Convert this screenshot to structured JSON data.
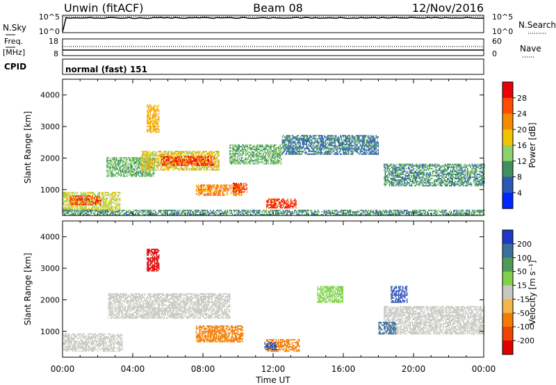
{
  "header": {
    "radar": "Unwin (fitACF)",
    "beam": "Beam 08",
    "date": "12/Nov/2016"
  },
  "nsky_panel": {
    "left_label": "N.Sky",
    "left_ticks": [
      "10^5",
      "10^0"
    ],
    "right_ticks": [
      "10^5",
      "10^0"
    ],
    "right_label": "N.Search"
  },
  "freq_panel": {
    "left_label_line1": "Freq.",
    "left_label_line2": "[MHz]",
    "left_ticks": [
      "18",
      "8"
    ],
    "right_ticks": [
      "60",
      "0"
    ],
    "right_label": "Nave"
  },
  "cpid_panel": {
    "label": "CPID",
    "mode": "normal (fast) 151"
  },
  "power_panel": {
    "ylabel": "Slant Range [km]",
    "colorbar_label": "Power [dB]",
    "colorbar_ticks": [
      "28",
      "24",
      "20",
      "16",
      "12",
      "8",
      "4"
    ],
    "colorbar_colors": [
      "#e8000b",
      "#ff4a00",
      "#f58a00",
      "#f0c400",
      "#8dd36a",
      "#3f8f60",
      "#2c59b6",
      "#0027ff"
    ]
  },
  "velocity_panel": {
    "ylabel": "Slant Range [km]",
    "colorbar_label": "Velocity [m s⁻¹]",
    "colorbar_ticks": [
      "200",
      "100",
      "50",
      "15",
      "-15",
      "-50",
      "-100",
      "-200"
    ],
    "colorbar_colors": [
      "#2038c8",
      "#3a6f9e",
      "#4f9a57",
      "#7fd14a",
      "#c8c8c0",
      "#f4b54a",
      "#f47c00",
      "#f04200",
      "#e00000"
    ]
  },
  "xaxis": {
    "label": "Time UT",
    "ticks": [
      "00:00",
      "04:00",
      "08:00",
      "12:00",
      "16:00",
      "20:00",
      "00:00"
    ]
  },
  "chart_data": {
    "type": "heatmap",
    "x_range_hours": [
      0,
      24
    ],
    "y_range_km": [
      180,
      4500
    ],
    "y_ticks": [
      1000,
      2000,
      3000,
      4000
    ],
    "x_ticks": [
      "00:00",
      "04:00",
      "08:00",
      "12:00",
      "16:00",
      "20:00",
      "00:00"
    ],
    "power_regions": [
      {
        "t0": 0.0,
        "t1": 3.3,
        "r0": 300,
        "r1": 900,
        "value": 16
      },
      {
        "t0": 0.4,
        "t1": 2.2,
        "r0": 500,
        "r1": 800,
        "value": 26
      },
      {
        "t0": 2.5,
        "t1": 5.2,
        "r0": 1400,
        "r1": 2000,
        "value": 12
      },
      {
        "t0": 4.5,
        "t1": 8.9,
        "r0": 1600,
        "r1": 2200,
        "value": 18
      },
      {
        "t0": 5.6,
        "t1": 8.6,
        "r0": 1750,
        "r1": 2050,
        "value": 27
      },
      {
        "t0": 4.8,
        "t1": 5.5,
        "r0": 2800,
        "r1": 3700,
        "value": 20
      },
      {
        "t0": 7.6,
        "t1": 10.2,
        "r0": 800,
        "r1": 1150,
        "value": 22
      },
      {
        "t0": 9.7,
        "t1": 10.5,
        "r0": 900,
        "r1": 1200,
        "value": 27
      },
      {
        "t0": 9.5,
        "t1": 12.5,
        "r0": 1800,
        "r1": 2400,
        "value": 12
      },
      {
        "t0": 11.6,
        "t1": 13.3,
        "r0": 400,
        "r1": 700,
        "value": 27
      },
      {
        "t0": 12.5,
        "t1": 18.0,
        "r0": 2100,
        "r1": 2700,
        "value": 8
      },
      {
        "t0": 18.3,
        "t1": 24.0,
        "r0": 1100,
        "r1": 1800,
        "value": 10
      },
      {
        "t0": 0.0,
        "t1": 24.0,
        "r0": 180,
        "r1": 320,
        "value": 10
      }
    ],
    "velocity_regions": [
      {
        "t0": 0.0,
        "t1": 3.4,
        "r0": 350,
        "r1": 900,
        "value": -5
      },
      {
        "t0": 2.6,
        "t1": 9.5,
        "r0": 1400,
        "r1": 2200,
        "value": 0
      },
      {
        "t0": 4.8,
        "t1": 5.5,
        "r0": 2900,
        "r1": 3600,
        "value": -220
      },
      {
        "t0": 7.6,
        "t1": 10.3,
        "r0": 650,
        "r1": 1150,
        "value": -80
      },
      {
        "t0": 11.6,
        "t1": 13.5,
        "r0": 350,
        "r1": 750,
        "value": -60
      },
      {
        "t0": 11.5,
        "t1": 12.2,
        "r0": 400,
        "r1": 650,
        "value": 200
      },
      {
        "t0": 14.5,
        "t1": 16.0,
        "r0": 1900,
        "r1": 2400,
        "value": 30
      },
      {
        "t0": 18.7,
        "t1": 19.6,
        "r0": 1900,
        "r1": 2400,
        "value": 200
      },
      {
        "t0": 18.3,
        "t1": 24.0,
        "r0": 900,
        "r1": 1800,
        "value": 0
      },
      {
        "t0": 18.0,
        "t1": 19.0,
        "r0": 900,
        "r1": 1300,
        "value": 180
      }
    ]
  }
}
